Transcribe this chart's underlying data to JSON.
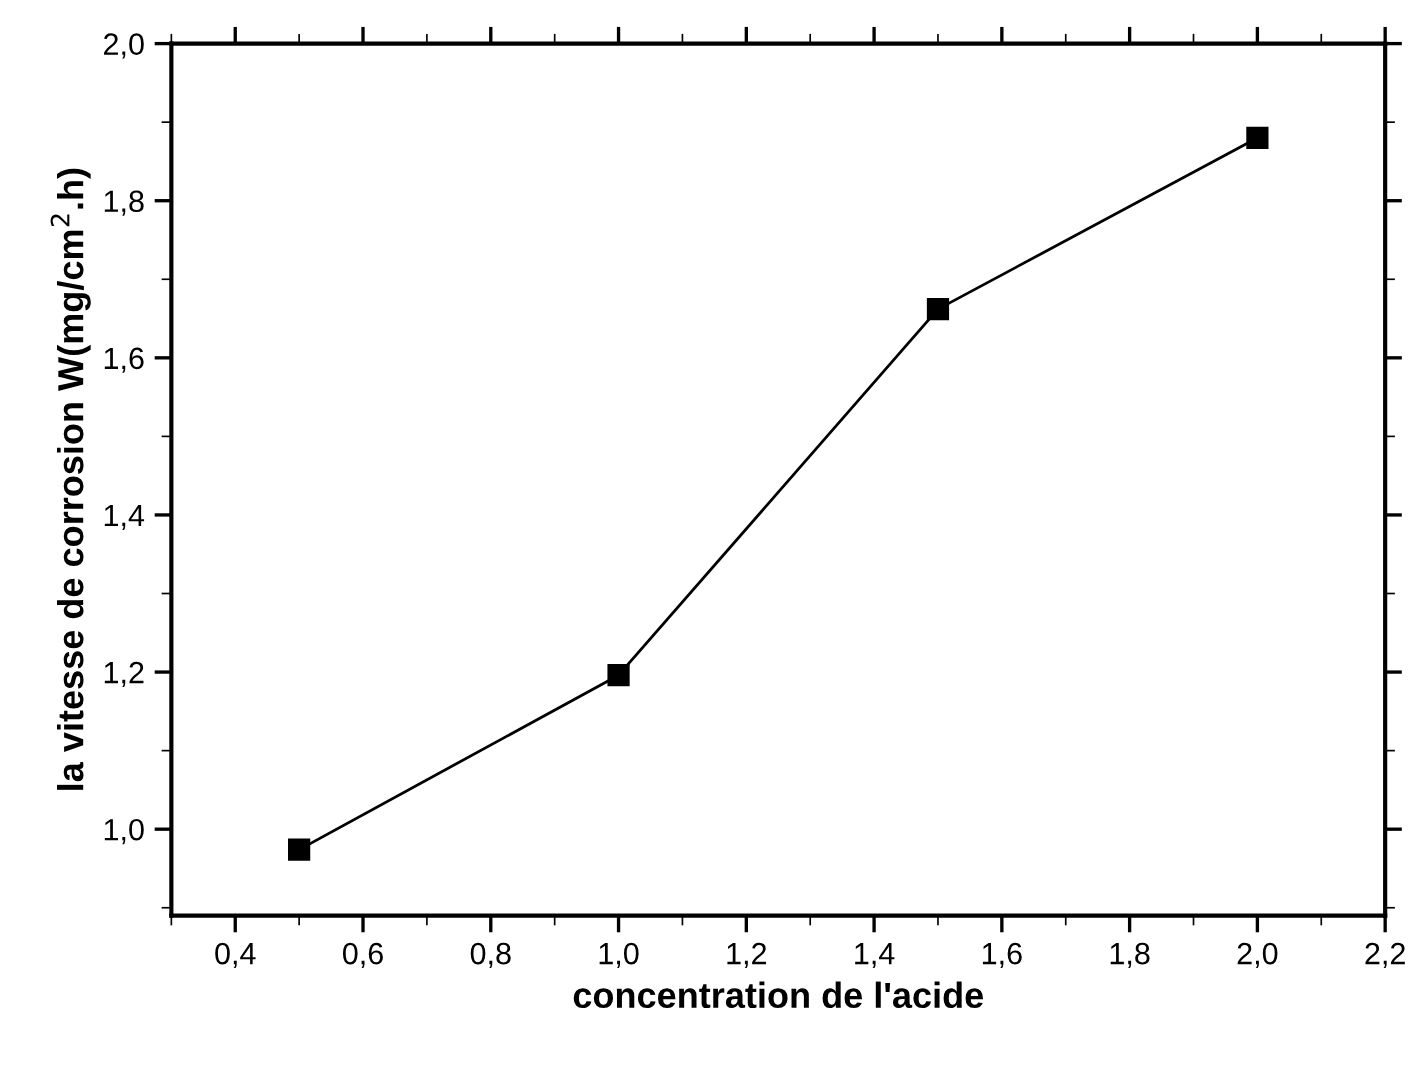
{
  "chart_data": {
    "type": "line",
    "xlabel": "concentration de l'acide",
    "ylabel": "la vitesse de corrosion W(mg/cm$^{2}$.h)",
    "x": [
      0.5,
      1.0,
      1.5,
      2.0
    ],
    "series": [
      {
        "color": "#000000",
        "values": [
          0.974,
          1.196,
          1.662,
          1.88
        ]
      }
    ],
    "marker": "square",
    "line_style": "solid",
    "grid": false,
    "legend": false,
    "xlim": [
      0.3,
      2.2
    ],
    "ylim": [
      0.89,
      2.0
    ],
    "xticks": [
      {
        "value": 0.4,
        "label": "0,4"
      },
      {
        "value": 0.6,
        "label": "0,6"
      },
      {
        "value": 0.8,
        "label": "0,8"
      },
      {
        "value": 1.0,
        "label": "1,0"
      },
      {
        "value": 1.2,
        "label": "1,2"
      },
      {
        "value": 1.4,
        "label": "1,4"
      },
      {
        "value": 1.6,
        "label": "1,6"
      },
      {
        "value": 1.8,
        "label": "1,8"
      },
      {
        "value": 2.0,
        "label": "2,0"
      },
      {
        "value": 2.2,
        "label": "2,2"
      }
    ],
    "yticks": [
      {
        "value": 1.0,
        "label": "1,0"
      },
      {
        "value": 1.2,
        "label": "1,2"
      },
      {
        "value": 1.4,
        "label": "1,4"
      },
      {
        "value": 1.6,
        "label": "1,6"
      },
      {
        "value": 1.8,
        "label": "1,8"
      },
      {
        "value": 2.0,
        "label": "2,0"
      }
    ]
  }
}
